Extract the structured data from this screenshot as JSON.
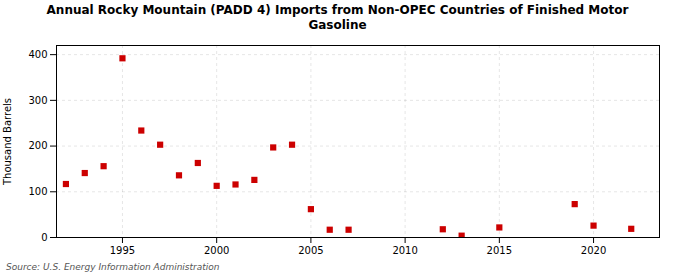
{
  "chart_data": {
    "type": "scatter",
    "title": "Annual Rocky Mountain (PADD 4) Imports from Non-OPEC Countries of Finished Motor\nGasoline",
    "ylabel": "Thousand Barrels",
    "caption": "Source: U.S. Energy Information Administration",
    "x": [
      1992,
      1993,
      1994,
      1995,
      1996,
      1997,
      1998,
      1999,
      2000,
      2001,
      2002,
      2003,
      2004,
      2005,
      2006,
      2007,
      2012,
      2013,
      2015,
      2019,
      2020,
      2022
    ],
    "values": [
      117,
      141,
      156,
      392,
      234,
      203,
      136,
      163,
      113,
      116,
      126,
      197,
      203,
      62,
      17,
      17,
      18,
      4,
      22,
      73,
      26,
      19
    ],
    "color": "#cc0000",
    "marker": "square",
    "xlim": [
      1991.5,
      2023.5
    ],
    "xticks": [
      1995,
      2000,
      2005,
      2010,
      2015,
      2020
    ],
    "ylim": [
      0,
      420
    ],
    "yticks": [
      0,
      100,
      200,
      300,
      400
    ],
    "grid": true
  }
}
